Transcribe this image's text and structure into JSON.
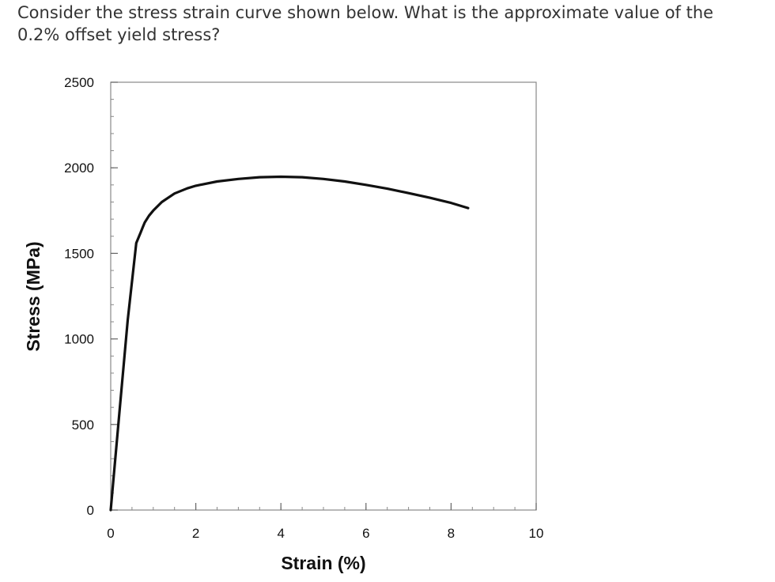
{
  "question": {
    "text": "Consider the stress strain curve shown below.  What is the approximate value of the 0.2% offset yield stress?"
  },
  "chart_data": {
    "type": "line",
    "xlabel": "Strain (%)",
    "ylabel": "Stress (MPa)",
    "xlim": [
      0,
      10
    ],
    "ylim": [
      0,
      2500
    ],
    "xticks": [
      0,
      2,
      4,
      6,
      8,
      10
    ],
    "xtick_labels": [
      "0",
      "2",
      "4",
      "6",
      "8",
      "10"
    ],
    "yticks": [
      0,
      500,
      1000,
      1500,
      2000,
      2500
    ],
    "ytick_labels": [
      "0",
      "500",
      "1000",
      "1500",
      "2000",
      "2500"
    ],
    "grid": false,
    "series": [
      {
        "color": "#111111",
        "x": [
          0,
          0.2,
          0.4,
          0.6,
          0.7,
          0.75,
          0.8,
          0.9,
          1.0,
          1.2,
          1.5,
          1.8,
          2.0,
          2.5,
          3.0,
          3.5,
          4.0,
          4.5,
          5.0,
          5.5,
          6.0,
          6.5,
          7.0,
          7.5,
          8.0,
          8.4
        ],
        "y": [
          0,
          560,
          1110,
          1560,
          1620,
          1650,
          1680,
          1720,
          1750,
          1800,
          1850,
          1880,
          1895,
          1920,
          1935,
          1945,
          1948,
          1945,
          1935,
          1920,
          1900,
          1878,
          1852,
          1825,
          1795,
          1765
        ]
      }
    ]
  }
}
